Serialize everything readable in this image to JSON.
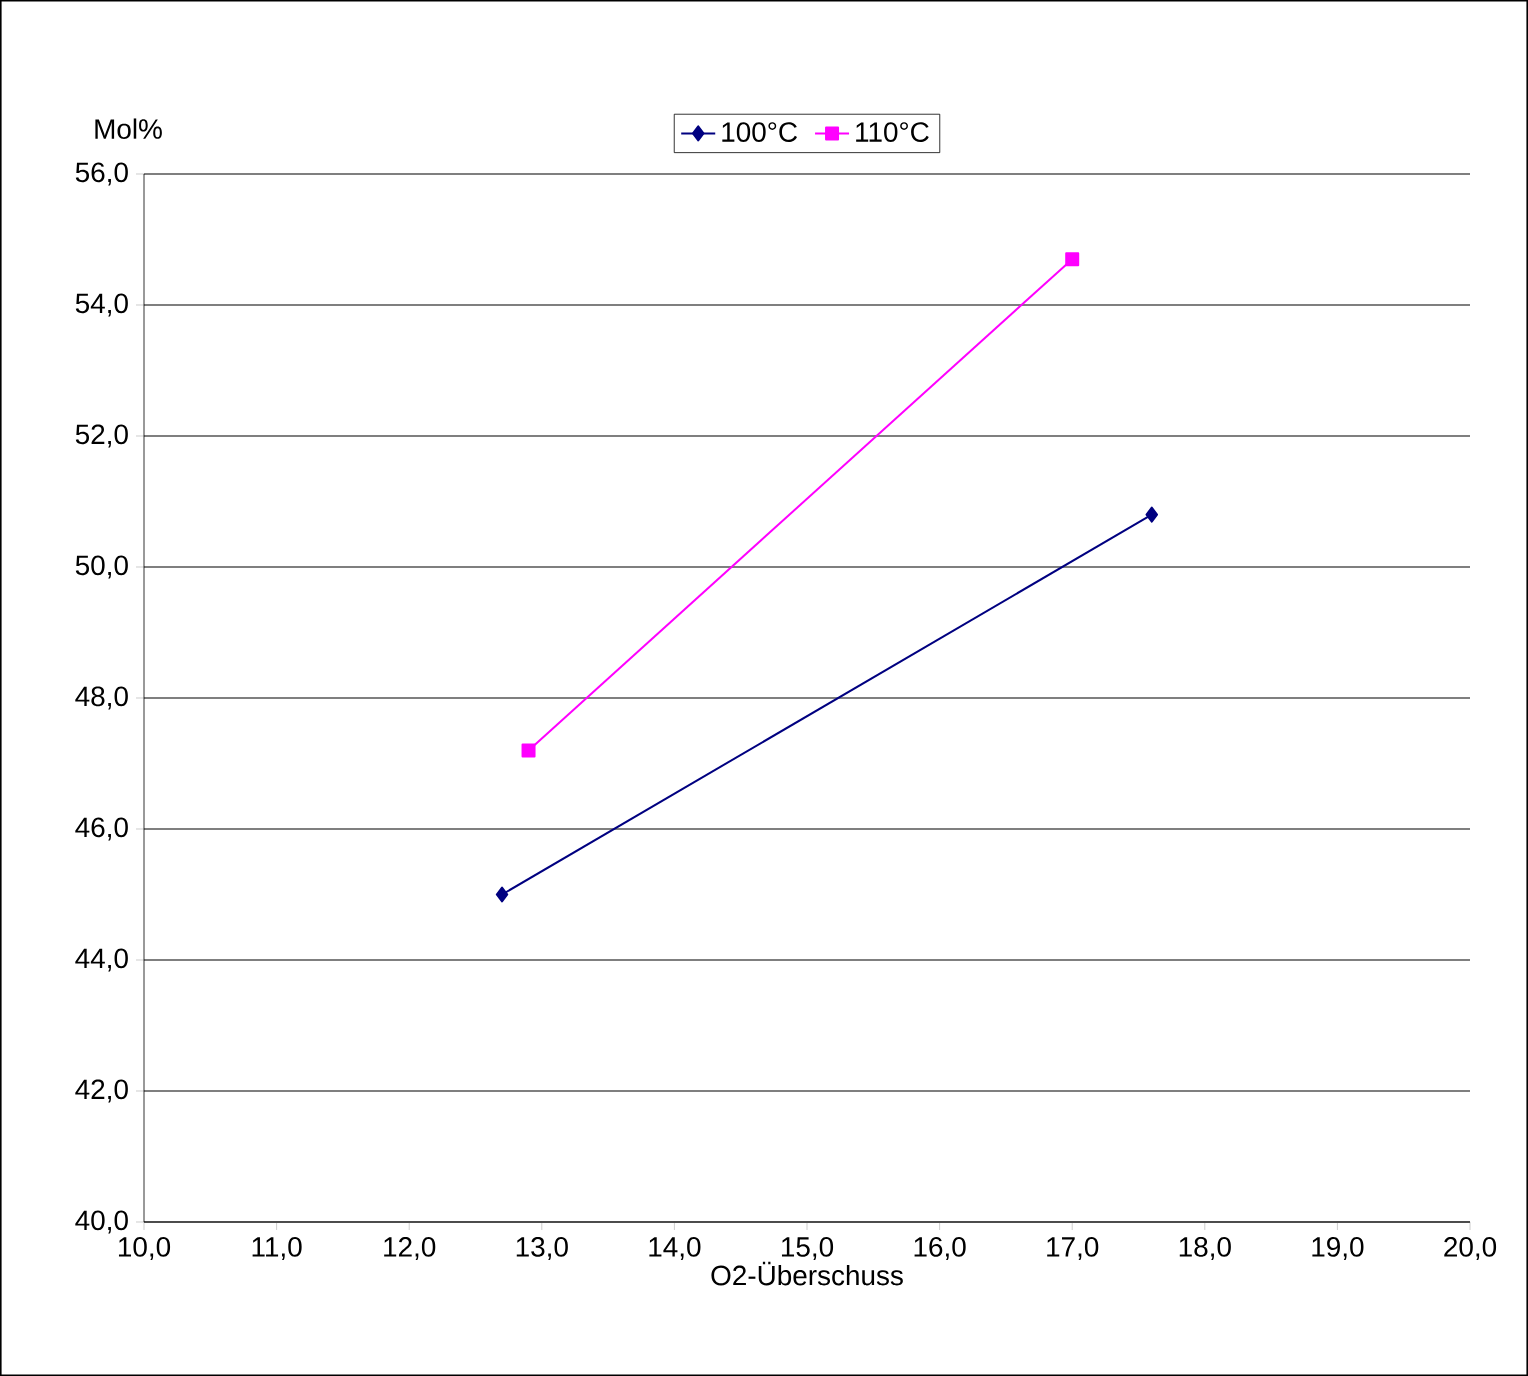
{
  "chart_data": {
    "type": "line",
    "xlabel": "O2-Überschuss",
    "ylabel": "Mol%",
    "xlim": [
      10,
      20
    ],
    "ylim": [
      40,
      56
    ],
    "xticks": [
      {
        "value": 10,
        "label": "10,0"
      },
      {
        "value": 11,
        "label": "11,0"
      },
      {
        "value": 12,
        "label": "12,0"
      },
      {
        "value": 13,
        "label": "13,0"
      },
      {
        "value": 14,
        "label": "14,0"
      },
      {
        "value": 15,
        "label": "15,0"
      },
      {
        "value": 16,
        "label": "16,0"
      },
      {
        "value": 17,
        "label": "17,0"
      },
      {
        "value": 18,
        "label": "18,0"
      },
      {
        "value": 19,
        "label": "19,0"
      },
      {
        "value": 20,
        "label": "20,0"
      }
    ],
    "yticks": [
      {
        "value": 40,
        "label": "40,0"
      },
      {
        "value": 42,
        "label": "42,0"
      },
      {
        "value": 44,
        "label": "44,0"
      },
      {
        "value": 46,
        "label": "46,0"
      },
      {
        "value": 48,
        "label": "48,0"
      },
      {
        "value": 50,
        "label": "50,0"
      },
      {
        "value": 52,
        "label": "52,0"
      },
      {
        "value": 54,
        "label": "54,0"
      },
      {
        "value": 56,
        "label": "56,0"
      }
    ],
    "grid": "y",
    "legend": "top",
    "series": [
      {
        "name": "100°C",
        "color": "#000080",
        "marker": "diamond",
        "x": [
          12.7,
          17.6
        ],
        "values": [
          45.0,
          50.8
        ]
      },
      {
        "name": "110°C",
        "color": "#ff00ff",
        "marker": "square",
        "x": [
          12.9,
          17.0
        ],
        "values": [
          47.2,
          54.7
        ]
      }
    ]
  }
}
